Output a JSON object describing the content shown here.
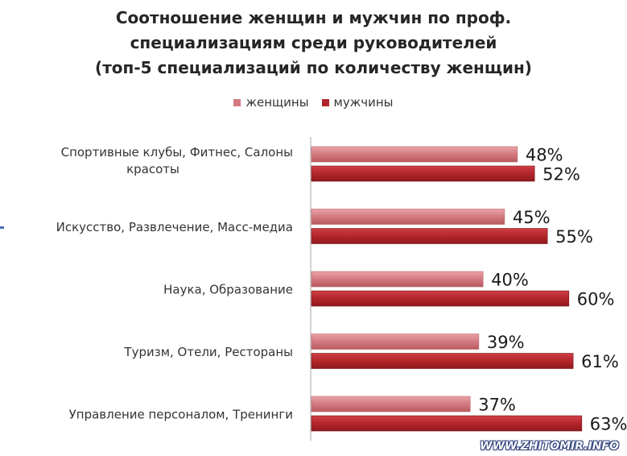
{
  "chart_data": {
    "type": "bar",
    "orientation": "horizontal",
    "title": [
      "Соотношение женщин и мужчин по проф.",
      "специализациям среди руководителей",
      "(топ-5 специализаций по количеству женщин)"
    ],
    "categories": [
      [
        "Спортивные клубы, Фитнес, Салоны",
        "красоты"
      ],
      [
        "Искусство, Развлечение, Масс-медиа"
      ],
      [
        "Наука, Образование"
      ],
      [
        "Туризм, Отели, Рестораны"
      ],
      [
        "Управление персоналом, Тренинги"
      ]
    ],
    "series": [
      {
        "name": "женщины",
        "values": [
          48,
          45,
          40,
          39,
          37
        ],
        "labels": [
          "48%",
          "45%",
          "40%",
          "39%",
          "37%"
        ],
        "color": "#d37a80"
      },
      {
        "name": "мужчины",
        "values": [
          52,
          55,
          60,
          61,
          63
        ],
        "labels": [
          "52%",
          "55%",
          "60%",
          "61%",
          "63%"
        ],
        "color": "#b2262b"
      }
    ],
    "xlim": [
      0,
      100
    ],
    "grid": false,
    "legend_position": "top"
  },
  "watermark": "WWW.ZHITOMIR.INFO"
}
